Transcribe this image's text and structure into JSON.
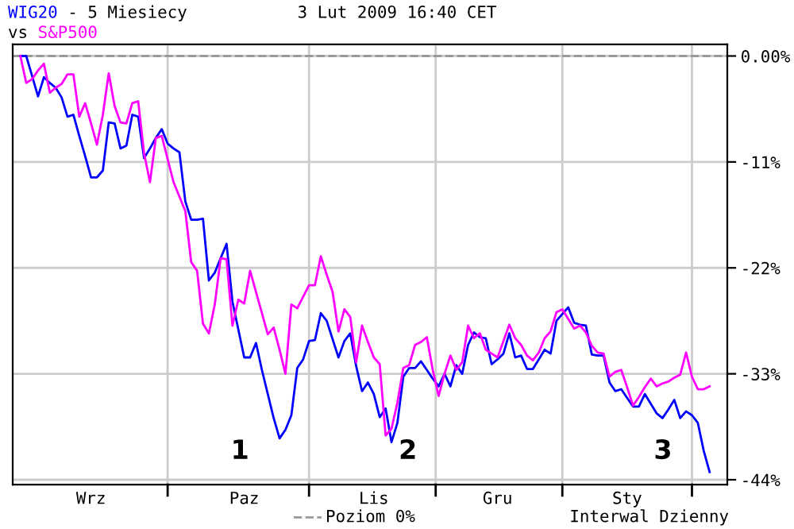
{
  "chart_data": {
    "type": "line",
    "title": "- 5 Miesiecy",
    "subtitle": "3 Lut 2009 16:40 CET",
    "legend": "bottom",
    "grid": true,
    "line_style": "solid",
    "marker": "none",
    "categories": [
      null,
      null,
      null,
      null,
      null,
      null,
      null,
      null,
      null,
      null,
      null,
      null,
      "Wrz",
      null,
      null,
      null,
      null,
      null,
      null,
      null,
      null,
      null,
      null,
      null,
      null,
      null,
      null,
      null,
      null,
      null,
      null,
      null,
      null,
      null,
      null,
      null,
      null,
      null,
      "Paz",
      null,
      null,
      null,
      null,
      null,
      null,
      null,
      null,
      null,
      null,
      null,
      null,
      null,
      null,
      null,
      null,
      null,
      null,
      null,
      null,
      null,
      "Lis",
      null,
      null,
      null,
      null,
      null,
      null,
      null,
      null,
      null,
      null,
      null,
      null,
      null,
      null,
      null,
      null,
      null,
      null,
      null,
      null,
      "Gru",
      null,
      null,
      null,
      null,
      null,
      null,
      null,
      null,
      null,
      null,
      null,
      null,
      null,
      null,
      null,
      null,
      null,
      null,
      null,
      null,
      null,
      "Sty",
      null,
      null,
      null,
      null,
      null,
      null,
      null,
      null,
      null,
      null,
      null,
      null,
      null,
      null
    ],
    "ylim": [
      -44.5,
      1.2
    ],
    "yticks": [
      {
        "value": 0,
        "label": "0.00%"
      },
      {
        "value": -11,
        "label": "-11%"
      },
      {
        "value": -22,
        "label": "-22%"
      },
      {
        "value": -33,
        "label": "-33%"
      },
      {
        "value": -44,
        "label": "-44%"
      }
    ],
    "ref_lines": [
      {
        "axis": "y",
        "value": 0,
        "label": "Poziom 0%",
        "color": "#999999",
        "line_style": "dashed"
      }
    ],
    "annotations": [
      "vs",
      "Interwal Dzienny",
      "1",
      "2",
      "3"
    ],
    "series": [
      {
        "name": "WIG20",
        "color": "#0000ff",
        "values": [
          0,
          0,
          -2.1,
          -4.2,
          -2.2,
          -2.8,
          -3.3,
          -4.3,
          -6.3,
          -6.1,
          -8.3,
          -10.4,
          -12.6,
          -12.6,
          -11.9,
          -6.9,
          -7.0,
          -9.6,
          -9.3,
          -6.1,
          -6.3,
          -10.6,
          -9.6,
          -8.5,
          -7.6,
          -9.1,
          -9.6,
          -10.0,
          -15.1,
          -17.0,
          -17.0,
          -16.9,
          -23.3,
          -22.5,
          -21.0,
          -19.5,
          -25.5,
          -28.4,
          -31.3,
          -31.3,
          -29.8,
          -32.6,
          -35.1,
          -37.6,
          -39.7,
          -38.8,
          -37.3,
          -32.4,
          -31.5,
          -29.6,
          -29.5,
          -26.7,
          -27.5,
          -29.4,
          -31.3,
          -29.6,
          -28.8,
          -32.2,
          -34.8,
          -33.9,
          -35.1,
          -37.5,
          -36.6,
          -40.1,
          -38.1,
          -33.3,
          -32.4,
          -32.4,
          -31.7,
          -32.6,
          -33.5,
          -34.3,
          -33.0,
          -34.3,
          -32.1,
          -33.0,
          -30.0,
          -28.7,
          -29.2,
          -29.3,
          -32.0,
          -31.5,
          -30.9,
          -28.8,
          -31.3,
          -31.1,
          -32.5,
          -32.5,
          -31.5,
          -30.5,
          -30.9,
          -27.5,
          -26.8,
          -26.1,
          -27.7,
          -27.9,
          -28.0,
          -31.0,
          -31.1,
          -31.1,
          -33.9,
          -34.8,
          -34.6,
          -35.5,
          -36.4,
          -36.4,
          -35.1,
          -36.1,
          -37.1,
          -37.6,
          -36.7,
          -35.7,
          -37.6,
          -36.9,
          -37.3,
          -38.1,
          -41.0,
          -43.2
        ]
      },
      {
        "name": "S&P500",
        "color": "#ff00ff",
        "values": [
          0,
          -2.8,
          -2.4,
          -1.5,
          -0.8,
          -3.8,
          -3.3,
          -2.9,
          -1.9,
          -1.9,
          -6.3,
          -4.9,
          -7.0,
          -9.2,
          -6.1,
          -1.8,
          -5.2,
          -6.9,
          -7.0,
          -4.9,
          -4.7,
          -10.1,
          -13.1,
          -8.5,
          -8.3,
          -10.7,
          -13.1,
          -14.6,
          -16.1,
          -21.4,
          -22.3,
          -27.8,
          -28.8,
          -25.8,
          -21.0,
          -21.1,
          -28.0,
          -25.3,
          -25.7,
          -22.3,
          -24.5,
          -26.7,
          -28.9,
          -28.2,
          -30.5,
          -33.0,
          -25.8,
          -26.2,
          -25.0,
          -23.8,
          -23.8,
          -20.8,
          -22.7,
          -24.5,
          -28.6,
          -26.3,
          -27.1,
          -31.8,
          -28.0,
          -29.7,
          -31.3,
          -32.0,
          -39.4,
          -38.7,
          -36.0,
          -32.4,
          -32.1,
          -30.0,
          -29.7,
          -29.2,
          -32.6,
          -35.3,
          -33.0,
          -31.1,
          -32.6,
          -31.8,
          -28.0,
          -29.3,
          -28.8,
          -30.5,
          -30.9,
          -31.3,
          -29.6,
          -27.9,
          -29.3,
          -30.0,
          -31.1,
          -31.6,
          -30.8,
          -29.3,
          -28.6,
          -26.6,
          -26.3,
          -27.3,
          -28.3,
          -28.0,
          -28.7,
          -30.1,
          -30.8,
          -30.9,
          -33.3,
          -32.8,
          -32.6,
          -34.4,
          -36.3,
          -35.4,
          -34.4,
          -33.5,
          -34.3,
          -34.0,
          -33.8,
          -33.4,
          -33.1,
          -30.8,
          -33.3,
          -34.6,
          -34.6,
          -34.3
        ]
      }
    ]
  }
}
